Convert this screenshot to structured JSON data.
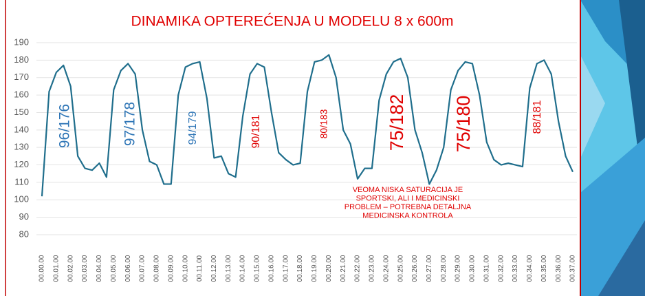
{
  "chart_data": {
    "type": "line",
    "title": "DINAMIKA OPTEREĆENJA U MODELU 8 x 600m",
    "x": [
      0,
      0.5,
      1,
      1.5,
      2,
      2.5,
      3,
      3.5,
      4,
      4.5,
      5,
      5.5,
      6,
      6.5,
      7,
      7.5,
      8,
      8.5,
      9,
      9.5,
      10,
      10.5,
      11,
      11.5,
      12,
      12.5,
      13,
      13.5,
      14,
      14.5,
      15,
      15.5,
      16,
      16.5,
      17,
      17.5,
      18,
      18.5,
      19,
      19.5,
      20,
      20.5,
      21,
      21.5,
      22,
      22.5,
      23,
      23.5,
      24,
      24.5,
      25,
      25.5,
      26,
      26.5,
      27,
      27.5,
      28,
      28.5,
      29,
      29.5,
      30,
      30.5,
      31,
      31.5,
      32,
      32.5,
      33,
      33.5,
      34,
      34.5,
      35,
      35.5,
      36,
      36.5,
      37
    ],
    "values": [
      102,
      162,
      173,
      177,
      165,
      125,
      118,
      117,
      121,
      113,
      163,
      174,
      178,
      172,
      140,
      122,
      120,
      109,
      109,
      160,
      176,
      178,
      179,
      158,
      124,
      125,
      115,
      113,
      148,
      172,
      178,
      176,
      150,
      127,
      123,
      120,
      121,
      162,
      179,
      180,
      183,
      170,
      140,
      132,
      112,
      118,
      118,
      157,
      172,
      179,
      181,
      170,
      140,
      127,
      109,
      117,
      130,
      163,
      174,
      179,
      178,
      160,
      133,
      123,
      120,
      121,
      120,
      119,
      164,
      178,
      180,
      172,
      145,
      125,
      116
    ],
    "color": "#1f6e8c",
    "xlim": [
      0,
      37
    ],
    "xticks": [
      {
        "value": 0,
        "label": "00.00.00"
      },
      {
        "value": 1,
        "label": "00.01.00"
      },
      {
        "value": 2,
        "label": "00.02.00"
      },
      {
        "value": 3,
        "label": "00.03.00"
      },
      {
        "value": 4,
        "label": "00.04.00"
      },
      {
        "value": 5,
        "label": "00.05.00"
      },
      {
        "value": 6,
        "label": "00.06.00"
      },
      {
        "value": 7,
        "label": "00.07.00"
      },
      {
        "value": 8,
        "label": "00.08.00"
      },
      {
        "value": 9,
        "label": "00.09.00"
      },
      {
        "value": 10,
        "label": "00.10.00"
      },
      {
        "value": 11,
        "label": "00.11.00"
      },
      {
        "value": 12,
        "label": "00.12.00"
      },
      {
        "value": 13,
        "label": "00.13.00"
      },
      {
        "value": 14,
        "label": "00.14.00"
      },
      {
        "value": 15,
        "label": "00.15.00"
      },
      {
        "value": 16,
        "label": "00.16.00"
      },
      {
        "value": 17,
        "label": "00.17.00"
      },
      {
        "value": 18,
        "label": "00.18.00"
      },
      {
        "value": 19,
        "label": "00.19.00"
      },
      {
        "value": 20,
        "label": "00.20.00"
      },
      {
        "value": 21,
        "label": "00.21.00"
      },
      {
        "value": 22,
        "label": "00.22.00"
      },
      {
        "value": 23,
        "label": "00.23.00"
      },
      {
        "value": 24,
        "label": "00.24.00"
      },
      {
        "value": 25,
        "label": "00.25.00"
      },
      {
        "value": 26,
        "label": "00.26.00"
      },
      {
        "value": 27,
        "label": "00.27.00"
      },
      {
        "value": 28,
        "label": "00.28.00"
      },
      {
        "value": 29,
        "label": "00.29.00"
      },
      {
        "value": 30,
        "label": "00.30.00"
      },
      {
        "value": 31,
        "label": "00.31.00"
      },
      {
        "value": 32,
        "label": "00.32.00"
      },
      {
        "value": 33,
        "label": "00.33.00"
      },
      {
        "value": 34,
        "label": "00.34.00"
      },
      {
        "value": 35,
        "label": "00.35.00"
      },
      {
        "value": 36,
        "label": "00.36.00"
      },
      {
        "value": 37,
        "label": "00.37.00"
      }
    ],
    "ylim": [
      80,
      190
    ],
    "yticks": [
      80,
      90,
      100,
      110,
      120,
      130,
      140,
      150,
      160,
      170,
      180,
      190
    ],
    "grid": true,
    "annotations": [
      {
        "text": "96/176",
        "color": "#2e75b6"
      },
      {
        "text": "97/178",
        "color": "#2e75b6"
      },
      {
        "text": "94/179",
        "color": "#2e75b6"
      },
      {
        "text": "90/181",
        "color": "#e00000"
      },
      {
        "text": "80/183",
        "color": "#e00000"
      },
      {
        "text": "75/182",
        "color": "#e00000"
      },
      {
        "text": "75/180",
        "color": "#e00000"
      },
      {
        "text": "88/181",
        "color": "#e00000"
      }
    ],
    "note": [
      "VEOMA NISKA SATURACIJA JE",
      "SPORTSKI, ALI I MEDICINSKI",
      "PROBLEM – POTREBNA DETALJNA",
      "MEDICINSKA KONTROLA"
    ],
    "note_color": "#e00000"
  }
}
